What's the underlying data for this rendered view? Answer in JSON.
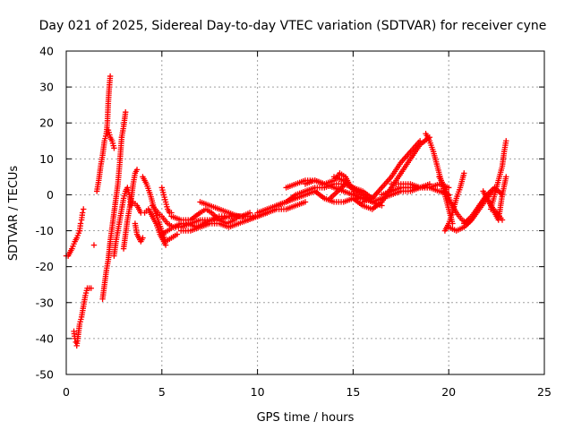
{
  "chart_data": {
    "type": "scatter",
    "title": "Day 021 of 2025, Sidereal Day-to-day VTEC variation (SDTVAR) for receiver cyne",
    "xlabel": "GPS time / hours",
    "ylabel": "SDTVAR / TECUs",
    "xlim": [
      0,
      25
    ],
    "ylim": [
      -50,
      40
    ],
    "x_ticks": [
      "0",
      "5",
      "10",
      "15",
      "20",
      "25"
    ],
    "y_ticks": [
      "40",
      "30",
      "20",
      "10",
      "0",
      "-10",
      "-20",
      "-30",
      "-40",
      "-50"
    ],
    "grid": true,
    "marker": "+",
    "color": "#ff0000",
    "segments": [
      {
        "name": "arc-01",
        "x": [
          0.0,
          0.1,
          0.2,
          0.3
        ],
        "y": [
          -17,
          -17,
          -16,
          -15
        ]
      },
      {
        "name": "arc-02",
        "x": [
          0.3,
          0.45,
          0.55,
          0.7
        ],
        "y": [
          -15,
          -13,
          -12,
          -10
        ]
      },
      {
        "name": "arc-03",
        "x": [
          0.7,
          0.75,
          0.8,
          0.85,
          0.9
        ],
        "y": [
          -10,
          -8,
          -7,
          -5,
          -4
        ]
      },
      {
        "name": "arc-04",
        "x": [
          0.4,
          0.45,
          0.5,
          0.55,
          0.6
        ],
        "y": [
          -38,
          -40,
          -41,
          -42,
          -40
        ]
      },
      {
        "name": "arc-05",
        "x": [
          0.6,
          0.7,
          0.8,
          0.9,
          1.0,
          1.1
        ],
        "y": [
          -40,
          -36,
          -34,
          -31,
          -28,
          -26
        ]
      },
      {
        "name": "arc-06",
        "x": [
          1.2,
          1.3
        ],
        "y": [
          -26,
          -26
        ]
      },
      {
        "name": "arc-07",
        "x": [
          1.45
        ],
        "y": [
          -14
        ]
      },
      {
        "name": "arc-08",
        "x": [
          1.6,
          1.7,
          1.8,
          1.9,
          2.0,
          2.1
        ],
        "y": [
          1,
          4,
          8,
          11,
          15,
          17
        ]
      },
      {
        "name": "arc-09",
        "x": [
          2.1,
          2.15,
          2.2,
          2.25,
          2.3
        ],
        "y": [
          17,
          20,
          26,
          30,
          33
        ]
      },
      {
        "name": "arc-10",
        "x": [
          2.2,
          2.3,
          2.4,
          2.5
        ],
        "y": [
          18,
          16,
          15,
          13
        ]
      },
      {
        "name": "arc-11",
        "x": [
          1.9,
          2.0,
          2.1,
          2.2,
          2.3,
          2.4,
          2.5,
          2.6,
          2.7,
          2.8,
          2.9
        ],
        "y": [
          -29,
          -25,
          -21,
          -18,
          -13,
          -9,
          -5,
          -1,
          3,
          9,
          16
        ]
      },
      {
        "name": "arc-12",
        "x": [
          2.9,
          3.0,
          3.1
        ],
        "y": [
          16,
          19,
          23
        ]
      },
      {
        "name": "arc-13",
        "x": [
          2.5,
          2.6,
          2.7,
          2.8,
          2.9,
          3.0,
          3.1,
          3.2,
          3.3,
          3.4
        ],
        "y": [
          -17,
          -13,
          -10,
          -7,
          -4,
          -1,
          1,
          2,
          0,
          -3
        ]
      },
      {
        "name": "arc-14",
        "x": [
          3.0,
          3.1,
          3.2,
          3.3,
          3.4,
          3.5,
          3.6,
          3.7
        ],
        "y": [
          -15,
          -11,
          -7,
          -4,
          -1,
          3,
          6,
          7
        ]
      },
      {
        "name": "arc-15",
        "x": [
          3.6,
          3.7,
          3.8,
          3.9,
          4.0
        ],
        "y": [
          -8,
          -11,
          -12,
          -13,
          -12
        ]
      },
      {
        "name": "arc-16",
        "x": [
          3.5,
          3.7,
          3.9,
          4.1,
          4.3,
          4.5,
          4.7,
          4.9,
          5.2
        ],
        "y": [
          -2,
          -3,
          -5,
          -5,
          -4,
          -6,
          -8,
          -11,
          -14
        ]
      },
      {
        "name": "arc-17",
        "x": [
          4.0,
          4.2,
          4.4,
          4.6,
          4.8,
          5.0,
          5.2,
          5.5,
          5.8
        ],
        "y": [
          5,
          3,
          0,
          -4,
          -7,
          -10,
          -13,
          -12,
          -11
        ]
      },
      {
        "name": "arc-18",
        "x": [
          4.5,
          4.8,
          5.0,
          5.3,
          5.6,
          6.0,
          6.5,
          7.0,
          7.5,
          8.0,
          8.5,
          9.0
        ],
        "y": [
          -3,
          -5,
          -6,
          -8,
          -9,
          -9,
          -8,
          -7,
          -7,
          -7,
          -6,
          -6
        ]
      },
      {
        "name": "arc-19",
        "x": [
          5.0,
          5.3,
          5.6,
          6.0,
          6.4,
          6.8,
          7.2,
          7.6,
          8.0,
          8.4,
          8.8,
          9.2,
          9.6
        ],
        "y": [
          -11,
          -10,
          -9,
          -8,
          -8,
          -9,
          -8,
          -7,
          -6,
          -6,
          -6,
          -6,
          -5
        ]
      },
      {
        "name": "arc-20",
        "x": [
          5.0,
          5.1,
          5.2,
          5.3,
          5.4,
          5.5
        ],
        "y": [
          2,
          0,
          -2,
          -4,
          -5,
          -5
        ]
      },
      {
        "name": "arc-21",
        "x": [
          5.5,
          6.0,
          6.5,
          7.0,
          7.3,
          7.6,
          8.0,
          8.4,
          8.8,
          9.0
        ],
        "y": [
          -6,
          -7,
          -7,
          -5,
          -4,
          -5,
          -7,
          -8,
          -7,
          -6
        ]
      },
      {
        "name": "arc-22",
        "x": [
          6.0,
          6.5,
          7.0,
          7.5,
          8.0,
          8.5,
          9.0,
          9.5,
          10.0,
          10.5
        ],
        "y": [
          -10,
          -10,
          -9,
          -8,
          -8,
          -9,
          -8,
          -7,
          -6,
          -5
        ]
      },
      {
        "name": "arc-23",
        "x": [
          7.0,
          7.5,
          8.0,
          8.5,
          9.0,
          9.5,
          10.0
        ],
        "y": [
          -2,
          -3,
          -4,
          -5,
          -6,
          -6,
          -6
        ]
      },
      {
        "name": "arc-24",
        "x": [
          9.5,
          10.0,
          10.5,
          11.0,
          11.5,
          12.0,
          12.5
        ],
        "y": [
          -7,
          -6,
          -5,
          -4,
          -4,
          -3,
          -2
        ]
      },
      {
        "name": "arc-25",
        "x": [
          10.0,
          10.5,
          11.0,
          11.5,
          12.0,
          12.5,
          13.0
        ],
        "y": [
          -5,
          -4,
          -3,
          -2,
          -1,
          0,
          1
        ]
      },
      {
        "name": "arc-26",
        "x": [
          11.0,
          11.5,
          12.0,
          12.5,
          13.0,
          13.5,
          14.0,
          14.5,
          15.0
        ],
        "y": [
          -3,
          -2,
          0,
          1,
          2,
          2,
          3,
          3,
          2
        ]
      },
      {
        "name": "arc-27",
        "x": [
          11.5,
          12.0,
          12.5,
          13.0,
          13.5,
          14.0,
          14.5,
          15.0,
          15.5
        ],
        "y": [
          2,
          3,
          4,
          4,
          3,
          2,
          1,
          0,
          -1
        ]
      },
      {
        "name": "arc-28",
        "x": [
          12.5,
          13.0,
          13.5,
          14.0,
          14.3,
          14.6,
          14.9,
          15.2
        ],
        "y": [
          3,
          4,
          3,
          4,
          6,
          5,
          2,
          0
        ]
      },
      {
        "name": "arc-29",
        "x": [
          13.0,
          13.5,
          14.0,
          14.5,
          15.0,
          15.5,
          16.0
        ],
        "y": [
          1,
          -1,
          -2,
          -2,
          -1,
          -1,
          -2
        ]
      },
      {
        "name": "arc-30",
        "x": [
          13.8,
          14.2,
          14.6,
          15.0,
          15.5,
          16.0
        ],
        "y": [
          -1,
          1,
          3,
          2,
          1,
          -1
        ]
      },
      {
        "name": "arc-31",
        "x": [
          14.0,
          14.5,
          15.0,
          15.5,
          16.0,
          16.5
        ],
        "y": [
          5,
          4,
          2,
          0,
          -2,
          -3
        ]
      },
      {
        "name": "arc-32",
        "x": [
          15.0,
          15.5,
          16.0,
          16.5,
          17.0,
          17.5,
          18.0,
          18.5,
          19.0
        ],
        "y": [
          -1,
          -3,
          -4,
          -2,
          2,
          6,
          10,
          14,
          16
        ]
      },
      {
        "name": "arc-33",
        "x": [
          15.5,
          16.0,
          16.5,
          17.0,
          17.5,
          18.0,
          18.5
        ],
        "y": [
          -2,
          -1,
          2,
          5,
          9,
          12,
          15
        ]
      },
      {
        "name": "arc-34",
        "x": [
          16.0,
          16.5,
          17.0,
          17.5,
          18.0,
          18.5,
          19.0
        ],
        "y": [
          -2,
          -1,
          0,
          1,
          1,
          2,
          3
        ]
      },
      {
        "name": "arc-35",
        "x": [
          16.5,
          17.0,
          17.5,
          18.0,
          18.5,
          19.0,
          19.5,
          20.0
        ],
        "y": [
          0,
          1,
          2,
          2,
          2,
          2,
          3,
          2
        ]
      },
      {
        "name": "arc-36",
        "x": [
          17.0,
          17.5,
          18.0,
          18.5,
          19.0,
          19.5,
          20.0
        ],
        "y": [
          3,
          3,
          3,
          2,
          2,
          1,
          0
        ]
      },
      {
        "name": "arc-37",
        "x": [
          18.8,
          19.0,
          19.2,
          19.4,
          19.6,
          19.8,
          20.0,
          20.2
        ],
        "y": [
          17,
          15,
          12,
          8,
          4,
          0,
          -4,
          -8
        ]
      },
      {
        "name": "arc-38",
        "x": [
          19.5,
          19.8,
          20.1,
          20.4,
          20.7,
          21.0,
          21.3,
          21.6,
          22.0
        ],
        "y": [
          5,
          2,
          -2,
          -5,
          -7,
          -8,
          -6,
          -3,
          0
        ]
      },
      {
        "name": "arc-39",
        "x": [
          19.8,
          20.0,
          20.2,
          20.4,
          20.6,
          20.8
        ],
        "y": [
          -10,
          -8,
          -5,
          -1,
          2,
          6
        ]
      },
      {
        "name": "arc-40",
        "x": [
          20.0,
          20.4,
          20.8,
          21.2,
          21.6,
          22.0,
          22.3
        ],
        "y": [
          -9,
          -10,
          -9,
          -7,
          -4,
          -1,
          1
        ]
      },
      {
        "name": "arc-41",
        "x": [
          20.8,
          21.2,
          21.6,
          22.0,
          22.4,
          22.8
        ],
        "y": [
          -8,
          -6,
          -3,
          0,
          2,
          0
        ]
      },
      {
        "name": "arc-42",
        "x": [
          21.8,
          22.0,
          22.2,
          22.4,
          22.6,
          22.8,
          23.0
        ],
        "y": [
          1,
          -1,
          -3,
          -5,
          -7,
          0,
          5
        ]
      },
      {
        "name": "arc-43",
        "x": [
          22.2,
          22.4,
          22.6,
          22.8,
          22.9,
          23.0
        ],
        "y": [
          -4,
          0,
          4,
          8,
          12,
          15
        ]
      },
      {
        "name": "arc-44",
        "x": [
          22.0,
          22.2,
          22.5,
          22.8
        ],
        "y": [
          -1,
          -3,
          -5,
          -7
        ]
      }
    ]
  }
}
